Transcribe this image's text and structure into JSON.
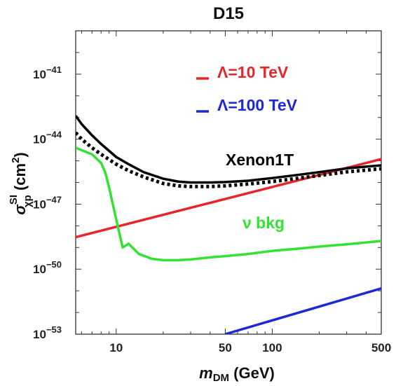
{
  "chart_data": {
    "type": "line",
    "title": "D15",
    "xlabel": {
      "main": "m",
      "sub": "DM",
      "unit": " (GeV)"
    },
    "ylabel": {
      "main": "σ",
      "sub": "χp",
      "sup": "SI",
      "unit_pre": " (cm",
      "unit_sup": "2",
      "unit_post": ")"
    },
    "x_scale": "log",
    "y_scale": "log",
    "xlim": [
      5.5,
      500
    ],
    "ylim": [
      1e-53,
      1e-39
    ],
    "x_ticks": [
      {
        "value": 10,
        "label": "10"
      },
      {
        "value": 50,
        "label": "50"
      },
      {
        "value": 100,
        "label": "100"
      },
      {
        "value": 500,
        "label": "500"
      }
    ],
    "y_ticks": [
      {
        "value": 1e-41,
        "base": "10",
        "exp": "−41"
      },
      {
        "value": 1e-44,
        "base": "10",
        "exp": "−44"
      },
      {
        "value": 1e-47,
        "base": "10",
        "exp": "−47"
      },
      {
        "value": 1e-50,
        "base": "10",
        "exp": "−50"
      },
      {
        "value": 1e-53,
        "base": "10",
        "exp": "−53"
      }
    ],
    "legend": {
      "placement": "top-center",
      "entries": [
        {
          "label": "Λ=10 TeV",
          "color": "#e8262a"
        },
        {
          "label": "Λ=100 TeV",
          "color": "#1b2ad6"
        }
      ]
    },
    "annotations": [
      {
        "text": "Xenon1T",
        "color": "#000000"
      },
      {
        "text": "ν bkg",
        "color": "#33e233"
      }
    ],
    "series": [
      {
        "name": "Λ=10 TeV",
        "color": "#e8262a",
        "style": "solid",
        "x": [
          5.5,
          500
        ],
        "y": [
          3e-49,
          1.2e-45
        ]
      },
      {
        "name": "Λ=100 TeV",
        "color": "#1b2ad6",
        "style": "solid",
        "x": [
          50,
          500
        ],
        "y": [
          1e-53,
          1.3e-51
        ]
      },
      {
        "name": "Xenon1T",
        "color": "#000000",
        "style": "solid",
        "x": [
          5.5,
          6,
          7,
          8,
          10,
          12,
          15,
          20,
          25,
          30,
          40,
          50,
          70,
          100,
          150,
          200,
          300,
          500
        ],
        "y": [
          1.2e-43,
          5e-44,
          1.5e-44,
          6e-45,
          1.5e-45,
          7e-46,
          3e-46,
          1.5e-46,
          1.1e-46,
          1e-46,
          1e-46,
          1.05e-46,
          1.2e-46,
          1.6e-46,
          2.3e-46,
          3e-46,
          4.5e-46,
          6.2e-46
        ]
      },
      {
        "name": "Xenon1T projected",
        "color": "#000000",
        "style": "dotted",
        "x": [
          5.5,
          6,
          7,
          8,
          10,
          12,
          15,
          20,
          25,
          30,
          40,
          50,
          70,
          100,
          150,
          200,
          300,
          500
        ],
        "y": [
          2e-44,
          1e-44,
          4e-45,
          2e-45,
          7e-46,
          3.5e-46,
          1.8e-46,
          9e-47,
          7e-47,
          6.5e-47,
          6.5e-47,
          7e-47,
          8.5e-47,
          1.1e-46,
          1.6e-46,
          2.1e-46,
          3.1e-46,
          4.3e-46
        ]
      },
      {
        "name": "ν bkg",
        "color": "#33e233",
        "style": "solid",
        "x": [
          5.5,
          7,
          8,
          8.5,
          9,
          10,
          11,
          12,
          14,
          17,
          20,
          25,
          30,
          40,
          50,
          70,
          100,
          150,
          200,
          300,
          500
        ],
        "y": [
          4e-45,
          2e-45,
          8e-46,
          3e-46,
          6e-47,
          2e-48,
          1e-49,
          1.5e-49,
          5e-50,
          3e-50,
          2.6e-50,
          2.6e-50,
          2.8e-50,
          3.5e-50,
          4e-50,
          5e-50,
          7e-50,
          9e-50,
          1.1e-49,
          1.4e-49,
          2e-49
        ]
      }
    ]
  }
}
